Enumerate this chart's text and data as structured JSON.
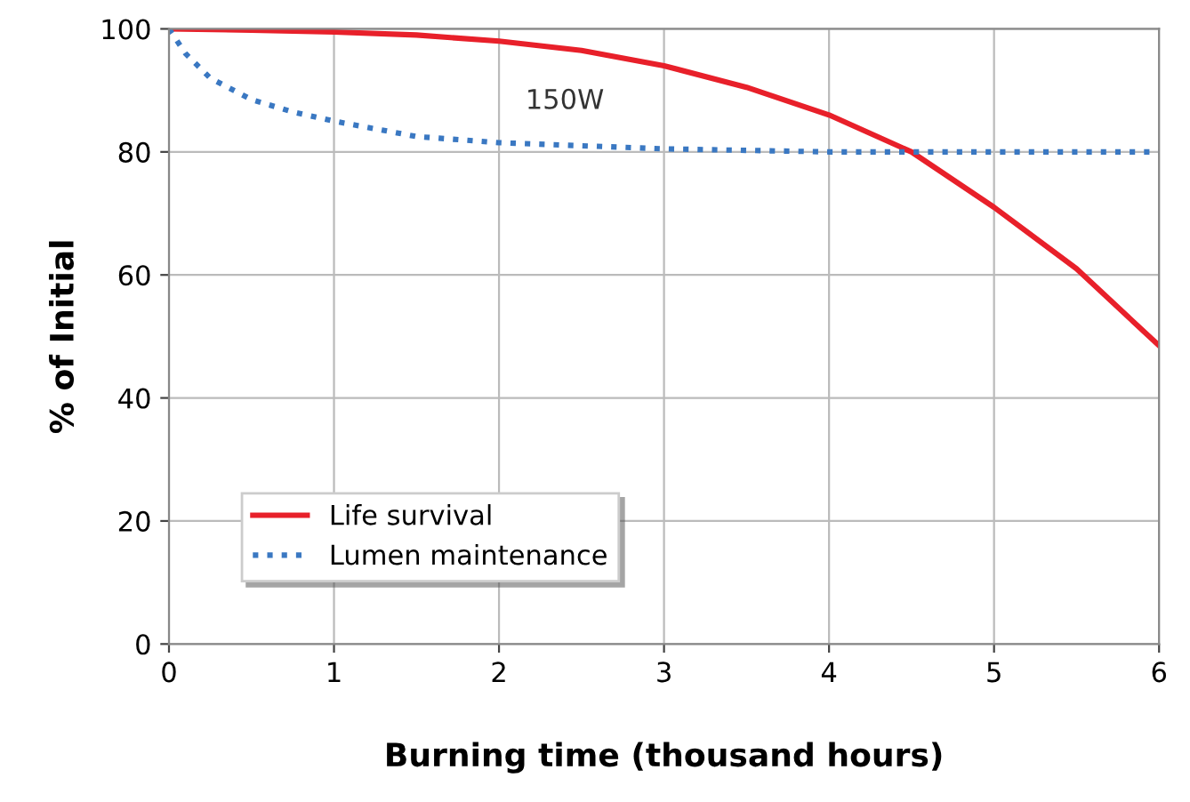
{
  "chart_data": {
    "type": "line",
    "xlabel": "Burning time (thousand hours)",
    "ylabel": "% of Initial",
    "annotations": [
      "150W"
    ],
    "xlim": [
      0,
      6
    ],
    "ylim": [
      0,
      100
    ],
    "xticks": [
      0,
      1,
      2,
      3,
      4,
      5,
      6
    ],
    "yticks": [
      0,
      20,
      40,
      60,
      80,
      100
    ],
    "grid": true,
    "legend": "bottom left",
    "marker": "none",
    "series": [
      {
        "name": "Life survival",
        "color": "#e8202a",
        "line_style": "solid",
        "x": [
          0,
          0.5,
          1,
          1.5,
          2,
          2.5,
          3,
          3.5,
          4,
          4.5,
          5,
          5.5,
          6
        ],
        "values": [
          100,
          99.8,
          99.5,
          99,
          98,
          96.5,
          94,
          90.5,
          86,
          80,
          71,
          61,
          48.5
        ]
      },
      {
        "name": "Lumen maintenance",
        "color": "#3a78c2",
        "line_style": "dotted",
        "x": [
          0,
          0.1,
          0.25,
          0.5,
          0.75,
          1,
          1.5,
          2,
          2.5,
          3,
          4,
          5,
          6
        ],
        "values": [
          100,
          96,
          92,
          88.5,
          86.5,
          85,
          82.5,
          81.5,
          81,
          80.5,
          80,
          80,
          80
        ]
      }
    ]
  }
}
